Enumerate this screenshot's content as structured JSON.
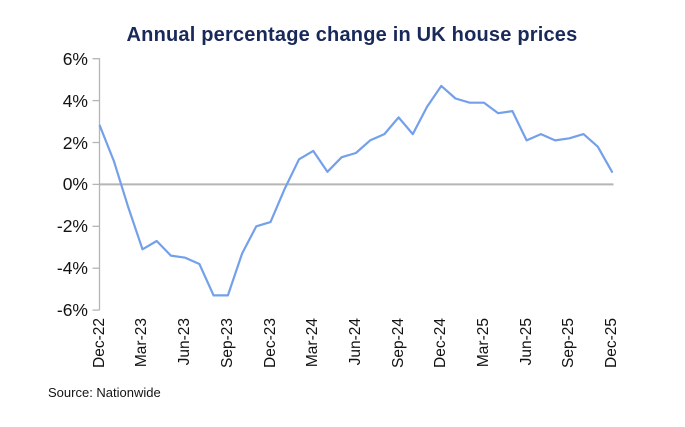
{
  "page": {
    "title": "Annual percentage change in UK house prices",
    "source": "Source: Nationwide"
  },
  "chart_data": {
    "type": "line",
    "title": "Annual percentage change in UK house prices",
    "series_name": "Annual % change in UK house prices",
    "x": [
      "Dec-22",
      "Jan-23",
      "Feb-23",
      "Mar-23",
      "Apr-23",
      "May-23",
      "Jun-23",
      "Jul-23",
      "Aug-23",
      "Sep-23",
      "Oct-23",
      "Nov-23",
      "Dec-23",
      "Jan-24",
      "Feb-24",
      "Mar-24",
      "Apr-24",
      "May-24",
      "Jun-24",
      "Jul-24",
      "Aug-24",
      "Sep-24",
      "Oct-24",
      "Nov-24",
      "Dec-24",
      "Jan-25",
      "Feb-25",
      "Mar-25",
      "Apr-25",
      "May-25",
      "Jun-25",
      "Jul-25",
      "Aug-25",
      "Sep-25",
      "Oct-25",
      "Nov-25",
      "Dec-25"
    ],
    "values": [
      2.8,
      1.1,
      -1.1,
      -3.1,
      -2.7,
      -3.4,
      -3.5,
      -3.8,
      -5.3,
      -5.3,
      -3.3,
      -2.0,
      -1.8,
      -0.2,
      1.2,
      1.6,
      0.6,
      1.3,
      1.5,
      2.1,
      2.4,
      3.2,
      2.4,
      3.7,
      4.7,
      4.1,
      3.9,
      3.9,
      3.4,
      3.5,
      2.1,
      2.4,
      2.1,
      2.2,
      2.4,
      1.8,
      0.6
    ],
    "x_tick_labels": [
      "Dec-22",
      "Mar-23",
      "Jun-23",
      "Sep-23",
      "Dec-23",
      "Mar-24",
      "Jun-24",
      "Sep-24",
      "Dec-24",
      "Mar-25",
      "Jun-25",
      "Sep-25",
      "Dec-25"
    ],
    "x_tick_every_n_months": 3,
    "y_ticks": [
      "6%",
      "4%",
      "2%",
      "0%",
      "-2%",
      "-4%",
      "-6%"
    ],
    "y_tick_values": [
      6,
      4,
      2,
      0,
      -2,
      -4,
      -6
    ],
    "ylim": [
      -6,
      6
    ],
    "xlabel": "",
    "ylabel": "",
    "grid": false,
    "legend": false,
    "zero_baseline_shown": true,
    "line_color": "#74A0EB",
    "axis_color": "#B5B5B5",
    "zero_line_color": "#B5B5B5",
    "title_color": "#19295A",
    "label_color": "#121212",
    "source": "Source: Nationwide"
  }
}
